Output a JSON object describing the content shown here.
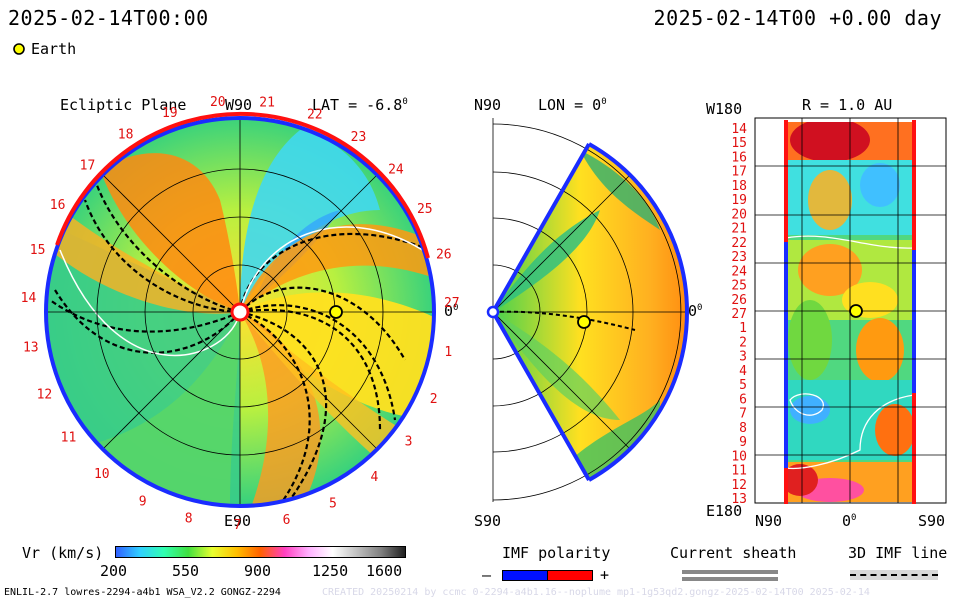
{
  "header": {
    "left_timestamp": "2025-02-14T00:00",
    "right_timestamp": "2025-02-14T00 +0.00 day"
  },
  "legend_body": {
    "label": "Earth",
    "color": "#ffff00"
  },
  "panels": {
    "ecliptic": {
      "title": "Ecliptic Plane",
      "lat_label": "LAT = -6.8",
      "lat_sup": "0",
      "top_label": "W90",
      "bottom_label": "E90",
      "right_label": "0",
      "right_sup": "0",
      "carrington_numbers": [
        "20",
        "21",
        "22",
        "23",
        "24",
        "25",
        "26",
        "27",
        "1",
        "2",
        "3",
        "4",
        "5",
        "6",
        "7",
        "8",
        "9",
        "10",
        "11",
        "12",
        "13",
        "14",
        "15",
        "16",
        "17",
        "18",
        "19"
      ]
    },
    "meridional": {
      "top_label": "N90",
      "lon_label": "LON = 0",
      "lon_sup": "0",
      "bottom_label": "S90",
      "right_label": "0",
      "right_sup": "0"
    },
    "radial": {
      "title": "R = 1.0 AU",
      "top_left_label": "W180",
      "bottom_left_label": "E180",
      "x_labels": [
        "N90",
        "0",
        "S90"
      ],
      "x_sup": "0",
      "y_labels": [
        "14",
        "15",
        "16",
        "17",
        "18",
        "19",
        "20",
        "21",
        "22",
        "23",
        "24",
        "25",
        "26",
        "27",
        "1",
        "2",
        "3",
        "4",
        "5",
        "6",
        "7",
        "8",
        "9",
        "10",
        "11",
        "12",
        "13"
      ]
    }
  },
  "colorbar": {
    "label": "Vr (km/s)",
    "ticks": [
      "200",
      "550",
      "900",
      "1250",
      "1600"
    ],
    "colors": [
      "#3060ff",
      "#30d0ff",
      "#30ffb0",
      "#40e040",
      "#e8ff30",
      "#ffc000",
      "#ff6000",
      "#ff40c0",
      "#ffb0ff",
      "#ffffff",
      "#c0c0c0",
      "#808080",
      "#202020"
    ]
  },
  "imf_polarity": {
    "label": "IMF polarity",
    "minus": "–",
    "plus": "+",
    "neg_color": "#0010ff",
    "pos_color": "#ff0000"
  },
  "current_sheath": {
    "label": "Current sheath"
  },
  "imf_line": {
    "label": "3D IMF line"
  },
  "footer": {
    "model_text": "ENLIL-2.7 lowres-2294-a4b1 WSA_V2.2 GONGZ-2294",
    "watermark": "CREATED 20250214 by ccmc 0-2294-a4b1.16--noplume mp1-1g53qd2.gongz-2025-02-14T00 2025-02-14"
  }
}
